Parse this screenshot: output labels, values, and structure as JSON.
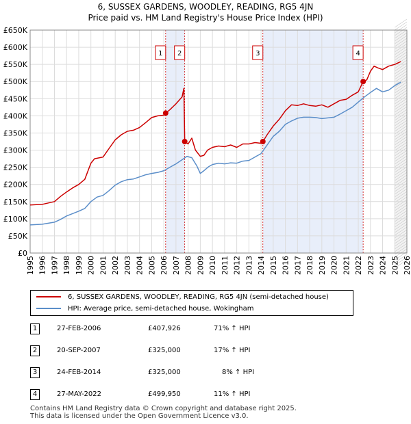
{
  "chart_data": {
    "type": "line",
    "title": "6, SUSSEX GARDENS, WOODLEY, READING, RG5 4JN",
    "subtitle": "Price paid vs. HM Land Registry's House Price Index (HPI)",
    "ylim": [
      0,
      650000
    ],
    "xlim": [
      1995,
      2026
    ],
    "yticks": [
      0,
      50000,
      100000,
      150000,
      200000,
      250000,
      300000,
      350000,
      400000,
      450000,
      500000,
      550000,
      600000,
      650000
    ],
    "ytick_labels": [
      "£0",
      "£50K",
      "£100K",
      "£150K",
      "£200K",
      "£250K",
      "£300K",
      "£350K",
      "£400K",
      "£450K",
      "£500K",
      "£550K",
      "£600K",
      "£650K"
    ],
    "xticks": [
      1995,
      1996,
      1997,
      1998,
      1999,
      2000,
      2001,
      2002,
      2003,
      2004,
      2005,
      2006,
      2007,
      2008,
      2009,
      2010,
      2011,
      2012,
      2013,
      2014,
      2015,
      2016,
      2017,
      2018,
      2019,
      2020,
      2021,
      2022,
      2023,
      2024,
      2025,
      2026
    ],
    "xtick_labels": [
      "1995",
      "1996",
      "1997",
      "1998",
      "1999",
      "2000",
      "2001",
      "2002",
      "2003",
      "2004",
      "2005",
      "2006",
      "2007",
      "2008",
      "2009",
      "2010",
      "2011",
      "2012",
      "2013",
      "2014",
      "2015",
      "2016",
      "2017",
      "2018",
      "2019",
      "2020",
      "2021",
      "2022",
      "2023",
      "2024",
      "2025",
      "2026"
    ],
    "grid": true,
    "shaded_periods": [
      [
        2006.15,
        2007.72
      ],
      [
        2014.15,
        2022.4
      ]
    ],
    "forecast_start": 2025.0,
    "series": [
      {
        "name": "6, SUSSEX GARDENS, WOODLEY, READING, RG5 4JN (semi-detached house)",
        "color": "#cc0000",
        "x": [
          1995.0,
          1996.0,
          1997.0,
          1997.5,
          1998.0,
          1998.5,
          1999.0,
          1999.5,
          2000.0,
          2000.3,
          2001.0,
          2001.5,
          2002.0,
          2002.5,
          2003.0,
          2003.5,
          2004.0,
          2004.5,
          2005.0,
          2005.5,
          2006.0,
          2006.15,
          2006.5,
          2007.0,
          2007.5,
          2007.65,
          2007.72,
          2008.0,
          2008.3,
          2008.6,
          2009.0,
          2009.3,
          2009.6,
          2010.0,
          2010.5,
          2011.0,
          2011.5,
          2012.0,
          2012.5,
          2013.0,
          2013.5,
          2014.0,
          2014.15,
          2014.5,
          2015.0,
          2015.5,
          2016.0,
          2016.5,
          2017.0,
          2017.5,
          2018.0,
          2018.5,
          2019.0,
          2019.5,
          2020.0,
          2020.5,
          2021.0,
          2021.5,
          2022.0,
          2022.4,
          2022.7,
          2023.0,
          2023.3,
          2023.6,
          2024.0,
          2024.5,
          2025.0,
          2025.5
        ],
        "values": [
          140000,
          142000,
          150000,
          165000,
          178000,
          190000,
          200000,
          215000,
          262000,
          275000,
          280000,
          305000,
          330000,
          345000,
          355000,
          358000,
          366000,
          380000,
          395000,
          400000,
          402000,
          407926,
          418000,
          435000,
          455000,
          480000,
          325000,
          318000,
          335000,
          300000,
          282000,
          285000,
          300000,
          308000,
          312000,
          310000,
          315000,
          308000,
          318000,
          318000,
          322000,
          320000,
          325000,
          345000,
          370000,
          390000,
          415000,
          432000,
          430000,
          435000,
          430000,
          428000,
          432000,
          425000,
          435000,
          445000,
          448000,
          460000,
          470000,
          499950,
          505000,
          530000,
          545000,
          540000,
          535000,
          545000,
          550000,
          558000
        ]
      },
      {
        "name": "HPI: Average price, semi-detached house, Wokingham",
        "color": "#5b8ec9",
        "x": [
          1995.0,
          1996.0,
          1997.0,
          1997.5,
          1998.0,
          1998.5,
          1999.0,
          1999.5,
          2000.0,
          2000.5,
          2001.0,
          2001.5,
          2002.0,
          2002.5,
          2003.0,
          2003.5,
          2004.0,
          2004.5,
          2005.0,
          2005.5,
          2006.0,
          2006.5,
          2007.0,
          2007.5,
          2007.9,
          2008.3,
          2008.7,
          2009.0,
          2009.3,
          2009.7,
          2010.0,
          2010.5,
          2011.0,
          2011.5,
          2012.0,
          2012.5,
          2013.0,
          2013.5,
          2014.0,
          2014.5,
          2015.0,
          2015.5,
          2016.0,
          2016.5,
          2017.0,
          2017.5,
          2018.0,
          2018.5,
          2019.0,
          2019.5,
          2020.0,
          2020.5,
          2021.0,
          2021.5,
          2022.0,
          2022.5,
          2023.0,
          2023.5,
          2024.0,
          2024.5,
          2025.0,
          2025.5
        ],
        "values": [
          82000,
          84000,
          90000,
          98000,
          108000,
          115000,
          122000,
          130000,
          150000,
          163000,
          168000,
          182000,
          198000,
          208000,
          214000,
          216000,
          222000,
          228000,
          232000,
          235000,
          240000,
          250000,
          260000,
          272000,
          282000,
          278000,
          255000,
          232000,
          240000,
          252000,
          258000,
          262000,
          260000,
          263000,
          262000,
          268000,
          270000,
          280000,
          290000,
          315000,
          340000,
          355000,
          375000,
          385000,
          393000,
          396000,
          396000,
          395000,
          392000,
          394000,
          396000,
          405000,
          415000,
          425000,
          440000,
          455000,
          468000,
          480000,
          470000,
          475000,
          488000,
          498000
        ]
      }
    ],
    "sale_markers": [
      {
        "label": "1",
        "x": 2006.15,
        "value": 407926
      },
      {
        "label": "2",
        "x": 2007.72,
        "value": 325000
      },
      {
        "label": "3",
        "x": 2014.15,
        "value": 325000
      },
      {
        "label": "4",
        "x": 2022.4,
        "value": 499950
      }
    ]
  },
  "legend": {
    "property_label": "6, SUSSEX GARDENS, WOODLEY, READING, RG5 4JN (semi-detached house)",
    "hpi_label": "HPI: Average price, semi-detached house, Wokingham",
    "property_color": "#cc0000",
    "hpi_color": "#5b8ec9"
  },
  "sales": [
    {
      "num": "1",
      "date": "27-FEB-2006",
      "price": "£407,926",
      "hpi": "71% ↑ HPI"
    },
    {
      "num": "2",
      "date": "20-SEP-2007",
      "price": "£325,000",
      "hpi": "17% ↑ HPI"
    },
    {
      "num": "3",
      "date": "24-FEB-2014",
      "price": "£325,000",
      "hpi": "8% ↑ HPI"
    },
    {
      "num": "4",
      "date": "27-MAY-2022",
      "price": "£499,950",
      "hpi": "11% ↑ HPI"
    }
  ],
  "footer": {
    "line1": "Contains HM Land Registry data © Crown copyright and database right 2025.",
    "line2": "This data is licensed under the Open Government Licence v3.0."
  }
}
